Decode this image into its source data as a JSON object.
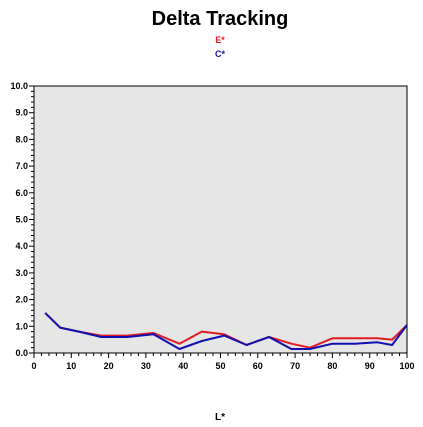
{
  "chart_data": {
    "type": "line",
    "title": "Delta Tracking",
    "xlabel": "L*",
    "ylabel": "",
    "xlim": [
      0,
      100
    ],
    "ylim": [
      0,
      10
    ],
    "xticks": [
      "0",
      "10",
      "20",
      "30",
      "40",
      "50",
      "60",
      "70",
      "80",
      "90",
      "100"
    ],
    "yticks": [
      "0.0",
      "1.0",
      "2.0",
      "3.0",
      "4.0",
      "5.0",
      "6.0",
      "7.0",
      "8.0",
      "9.0",
      "10.0"
    ],
    "grid": false,
    "legend_position": "top-center",
    "plot_background": "#e6e6e6",
    "series": [
      {
        "name": "E*",
        "color": "#e01b24",
        "x": [
          3,
          7,
          12,
          18,
          25,
          32,
          39,
          45,
          51,
          57,
          63,
          69,
          74,
          80,
          86,
          92,
          96,
          100
        ],
        "y": [
          1.5,
          0.95,
          0.8,
          0.65,
          0.65,
          0.75,
          0.35,
          0.8,
          0.7,
          0.3,
          0.6,
          0.35,
          0.2,
          0.55,
          0.55,
          0.55,
          0.5,
          1.05
        ]
      },
      {
        "name": "C*",
        "color": "#1010b0",
        "x": [
          3,
          7,
          12,
          18,
          25,
          32,
          39,
          45,
          51,
          57,
          63,
          69,
          74,
          80,
          86,
          92,
          96,
          100
        ],
        "y": [
          1.5,
          0.95,
          0.8,
          0.6,
          0.6,
          0.7,
          0.15,
          0.45,
          0.65,
          0.3,
          0.6,
          0.15,
          0.15,
          0.35,
          0.35,
          0.4,
          0.3,
          1.05
        ]
      }
    ]
  }
}
